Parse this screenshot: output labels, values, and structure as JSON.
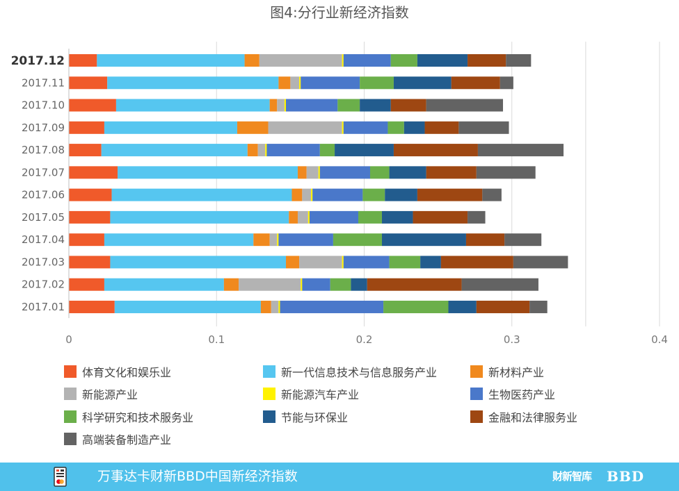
{
  "chart_data": {
    "type": "bar",
    "orientation": "horizontal",
    "stacked": true,
    "title": "图4:分行业新经济指数",
    "xlabel": "",
    "ylabel": "",
    "categories": [
      "2017.12",
      "2017.11",
      "2017.10",
      "2017.09",
      "2017.08",
      "2017.07",
      "2017.06",
      "2017.05",
      "2017.04",
      "2017.03",
      "2017.02",
      "2017.01"
    ],
    "emphasized_category": "2017.12",
    "xlim": [
      0,
      0.4
    ],
    "xticks": [
      {
        "value": 0,
        "label": "0"
      },
      {
        "value": 0.1,
        "label": "0.1"
      },
      {
        "value": 0.2,
        "label": "0.2"
      },
      {
        "value": 0.3,
        "label": "0.3"
      },
      {
        "value": 0.4,
        "label": "0.4"
      }
    ],
    "grid": true,
    "gridlines": [
      0.1,
      0.2,
      0.3,
      0.35,
      0.4
    ],
    "legend_position": "bottom",
    "series": [
      {
        "name": "体育文化和娱乐业",
        "color": "#F05A2A",
        "values": [
          0.019,
          0.026,
          0.032,
          0.024,
          0.022,
          0.033,
          0.029,
          0.028,
          0.024,
          0.028,
          0.024,
          0.031
        ]
      },
      {
        "name": "新一代信息技术与信息服务产业",
        "color": "#56C6F0",
        "values": [
          0.1,
          0.116,
          0.104,
          0.09,
          0.099,
          0.122,
          0.122,
          0.121,
          0.101,
          0.119,
          0.081,
          0.099
        ]
      },
      {
        "name": "新材料产业",
        "color": "#F0891E",
        "values": [
          0.01,
          0.008,
          0.005,
          0.021,
          0.007,
          0.006,
          0.007,
          0.006,
          0.011,
          0.009,
          0.01,
          0.007
        ]
      },
      {
        "name": "新能源产业",
        "color": "#B3B3B3",
        "values": [
          0.056,
          0.006,
          0.005,
          0.05,
          0.005,
          0.008,
          0.006,
          0.007,
          0.005,
          0.029,
          0.042,
          0.005
        ]
      },
      {
        "name": "新能源汽车产业",
        "color": "#FFF200",
        "values": [
          0.001,
          0.001,
          0.001,
          0.001,
          0.001,
          0.001,
          0.001,
          0.001,
          0.001,
          0.001,
          0.001,
          0.001
        ]
      },
      {
        "name": "生物医药产业",
        "color": "#4A78CA",
        "values": [
          0.032,
          0.04,
          0.035,
          0.03,
          0.036,
          0.034,
          0.034,
          0.033,
          0.037,
          0.031,
          0.019,
          0.07
        ]
      },
      {
        "name": "科学研究和技术服务业",
        "color": "#6BAF4A",
        "values": [
          0.018,
          0.023,
          0.015,
          0.011,
          0.01,
          0.013,
          0.015,
          0.016,
          0.033,
          0.021,
          0.014,
          0.044
        ]
      },
      {
        "name": "节能与环保业",
        "color": "#225C8E",
        "values": [
          0.034,
          0.039,
          0.021,
          0.014,
          0.04,
          0.025,
          0.022,
          0.021,
          0.057,
          0.014,
          0.011,
          0.019
        ]
      },
      {
        "name": "金融和法律服务业",
        "color": "#9E4712",
        "values": [
          0.026,
          0.033,
          0.024,
          0.023,
          0.057,
          0.034,
          0.044,
          0.037,
          0.026,
          0.049,
          0.064,
          0.036
        ]
      },
      {
        "name": "高端装备制造产业",
        "color": "#636363",
        "values": [
          0.017,
          0.009,
          0.052,
          0.034,
          0.058,
          0.04,
          0.013,
          0.012,
          0.025,
          0.037,
          0.052,
          0.012
        ]
      }
    ]
  },
  "footer": {
    "title": "万事达卡财新BBD中国新经济指数",
    "logo_caixin": "财新智库",
    "logo_bbd": "BBD",
    "background": "#50C1EB",
    "icon": "mastercard-card-icon"
  }
}
